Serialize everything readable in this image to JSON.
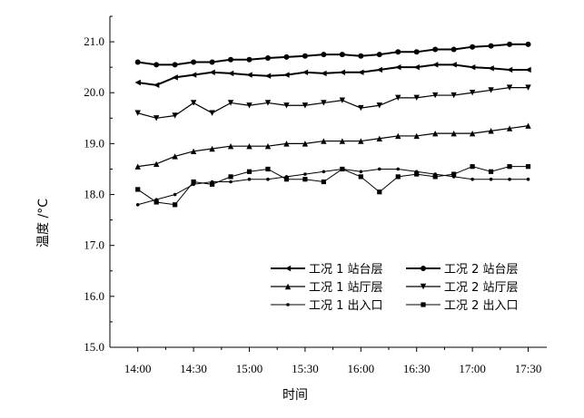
{
  "chart_data": {
    "type": "line",
    "xlabel": "时间",
    "ylabel": "温度 /°C",
    "xlim": [
      "13:45",
      "17:40"
    ],
    "ylim": [
      15.0,
      21.5
    ],
    "x_ticks": [
      "14:00",
      "14:30",
      "15:00",
      "15:30",
      "16:00",
      "16:30",
      "17:00",
      "17:30"
    ],
    "y_ticks": [
      "15.0",
      "16.0",
      "17.0",
      "18.0",
      "19.0",
      "20.0",
      "21.0"
    ],
    "grid": false,
    "legend_position": "bottom-right",
    "x": [
      "14:00",
      "14:10",
      "14:20",
      "14:30",
      "14:40",
      "14:50",
      "15:00",
      "15:10",
      "15:20",
      "15:30",
      "15:40",
      "15:50",
      "16:00",
      "16:10",
      "16:20",
      "16:30",
      "16:40",
      "16:50",
      "17:00",
      "17:10",
      "17:20",
      "17:30"
    ],
    "series": [
      {
        "name": "工况 1 站台层",
        "marker": "triangle-left",
        "line_width": 2,
        "values": [
          20.2,
          20.15,
          20.3,
          20.35,
          20.4,
          20.38,
          20.35,
          20.33,
          20.35,
          20.4,
          20.38,
          20.4,
          20.4,
          20.45,
          20.5,
          20.5,
          20.55,
          20.55,
          20.5,
          20.48,
          20.45,
          20.45
        ]
      },
      {
        "name": "工况 2 站台层",
        "marker": "circle",
        "line_width": 2,
        "values": [
          20.6,
          20.55,
          20.55,
          20.6,
          20.6,
          20.65,
          20.65,
          20.68,
          20.7,
          20.72,
          20.75,
          20.75,
          20.72,
          20.75,
          20.8,
          20.8,
          20.85,
          20.85,
          20.9,
          20.92,
          20.95,
          20.95
        ]
      },
      {
        "name": "工况 1 站厅层",
        "marker": "triangle-up",
        "line_width": 1.2,
        "values": [
          18.55,
          18.6,
          18.75,
          18.85,
          18.9,
          18.95,
          18.95,
          18.95,
          19.0,
          19.0,
          19.05,
          19.05,
          19.05,
          19.1,
          19.15,
          19.15,
          19.2,
          19.2,
          19.2,
          19.25,
          19.3,
          19.35
        ]
      },
      {
        "name": "工况 2 站厅层",
        "marker": "triangle-down",
        "line_width": 1.2,
        "values": [
          19.6,
          19.5,
          19.55,
          19.8,
          19.6,
          19.8,
          19.75,
          19.8,
          19.75,
          19.75,
          19.8,
          19.85,
          19.7,
          19.75,
          19.9,
          19.9,
          19.95,
          19.95,
          20.0,
          20.05,
          20.1,
          20.1
        ]
      },
      {
        "name": "工况 1 出入口",
        "marker": "dot",
        "line_width": 1,
        "values": [
          17.8,
          17.9,
          18.0,
          18.2,
          18.25,
          18.25,
          18.3,
          18.3,
          18.35,
          18.4,
          18.45,
          18.5,
          18.45,
          18.5,
          18.5,
          18.45,
          18.4,
          18.35,
          18.3,
          18.3,
          18.3,
          18.3
        ]
      },
      {
        "name": "工况 2 出入口",
        "marker": "square",
        "line_width": 1,
        "values": [
          18.1,
          17.85,
          17.8,
          18.25,
          18.2,
          18.35,
          18.45,
          18.5,
          18.3,
          18.3,
          18.25,
          18.5,
          18.35,
          18.05,
          18.35,
          18.4,
          18.35,
          18.4,
          18.55,
          18.45,
          18.55,
          18.55
        ]
      }
    ]
  }
}
